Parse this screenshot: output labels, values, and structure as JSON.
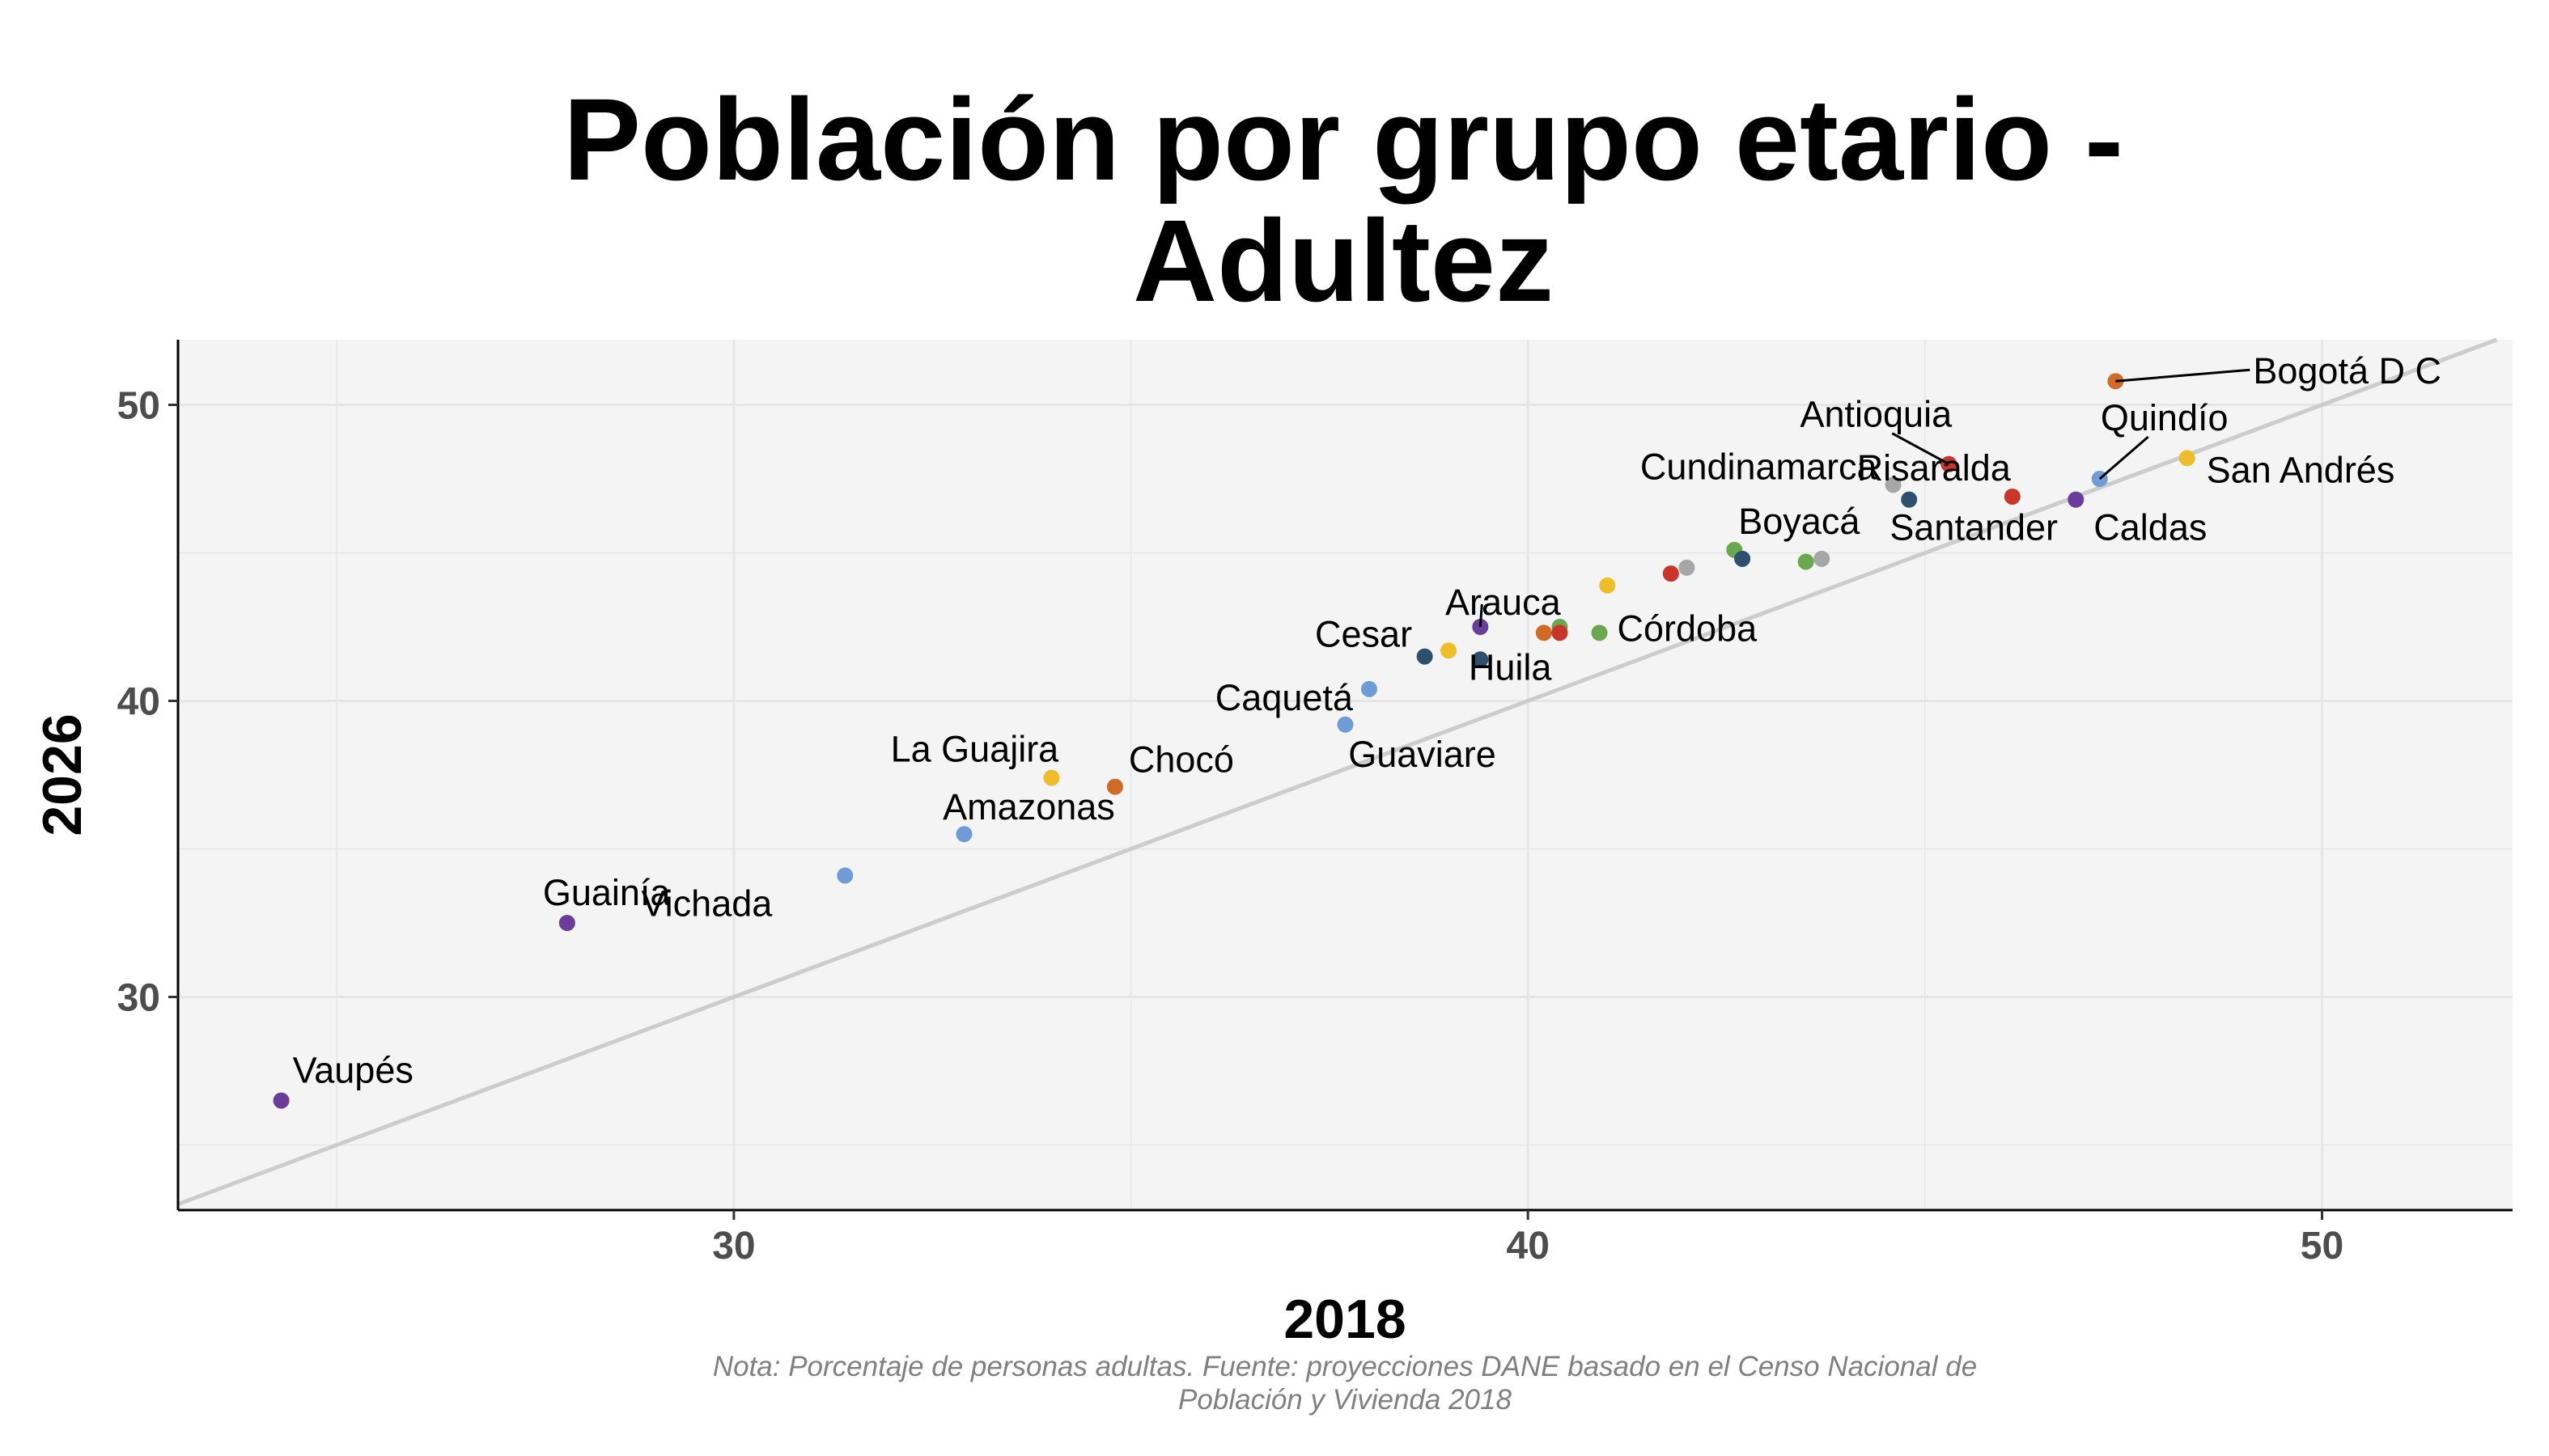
{
  "chart_data": {
    "type": "scatter",
    "title": [
      "Población por grupo etario -",
      "Adultez"
    ],
    "xlabel": "2018",
    "ylabel": "2026",
    "caption": [
      "Nota: Porcentaje de personas adultas. Fuente: proyecciones DANE basado en el Censo Nacional de",
      "Población y Vivienda 2018"
    ],
    "xlim": [
      23.0,
      52.4
    ],
    "ylim": [
      22.8,
      52.2
    ],
    "xticks": [
      30,
      40,
      50
    ],
    "yticks": [
      30,
      40,
      50
    ],
    "grid": true,
    "reference_line": "y = x",
    "colors": {
      "panel": "#f4f4f4",
      "grid": "#e6e6e6",
      "reference_line": "#cccccc",
      "purple": "#6a3d9a",
      "lightblue": "#6f9bd7",
      "yellow": "#f0bd2a",
      "orange": "#cf6b27",
      "navy": "#2f4f6f",
      "red": "#c8352a",
      "green": "#6aa84f",
      "grey": "#a6a6a6"
    },
    "points": [
      {
        "x": 24.3,
        "y": 26.5,
        "color": "#6a3d9a",
        "label": "Vaupés"
      },
      {
        "x": 27.9,
        "y": 32.5,
        "color": "#6a3d9a",
        "label": "Guainía"
      },
      {
        "x": 31.4,
        "y": 34.1,
        "color": "#6f9bd7",
        "label": "Vichada"
      },
      {
        "x": 32.9,
        "y": 35.5,
        "color": "#6f9bd7",
        "label": "Amazonas"
      },
      {
        "x": 34.0,
        "y": 37.4,
        "color": "#f0bd2a",
        "label": "La Guajira"
      },
      {
        "x": 34.8,
        "y": 37.1,
        "color": "#cf6b27",
        "label": "Chocó"
      },
      {
        "x": 37.7,
        "y": 39.2,
        "color": "#6f9bd7",
        "label": "Guaviare"
      },
      {
        "x": 38.0,
        "y": 40.4,
        "color": "#6f9bd7",
        "label": "Caquetá"
      },
      {
        "x": 38.7,
        "y": 41.5,
        "color": "#2f4f6f",
        "label": ""
      },
      {
        "x": 39.0,
        "y": 41.7,
        "color": "#f0bd2a",
        "label": "Cesar"
      },
      {
        "x": 39.4,
        "y": 42.5,
        "color": "#6a3d9a",
        "label": "Arauca"
      },
      {
        "x": 39.4,
        "y": 41.4,
        "color": "#2f4f6f",
        "label": ""
      },
      {
        "x": 40.2,
        "y": 42.3,
        "color": "#cf6b27",
        "label": ""
      },
      {
        "x": 40.4,
        "y": 42.5,
        "color": "#6aa84f",
        "label": ""
      },
      {
        "x": 40.4,
        "y": 42.3,
        "color": "#c8352a",
        "label": "Huila"
      },
      {
        "x": 40.9,
        "y": 42.3,
        "color": "#6aa84f",
        "label": "Córdoba"
      },
      {
        "x": 41.0,
        "y": 43.9,
        "color": "#f0bd2a",
        "label": ""
      },
      {
        "x": 41.8,
        "y": 44.3,
        "color": "#c8352a",
        "label": ""
      },
      {
        "x": 42.0,
        "y": 44.5,
        "color": "#a6a6a6",
        "label": ""
      },
      {
        "x": 42.6,
        "y": 45.1,
        "color": "#6aa84f",
        "label": "Boyacá"
      },
      {
        "x": 42.7,
        "y": 44.8,
        "color": "#2f4f6f",
        "label": ""
      },
      {
        "x": 43.5,
        "y": 44.7,
        "color": "#6aa84f",
        "label": ""
      },
      {
        "x": 43.7,
        "y": 44.8,
        "color": "#a6a6a6",
        "label": ""
      },
      {
        "x": 44.6,
        "y": 47.3,
        "color": "#a6a6a6",
        "label": "Cundinamarca"
      },
      {
        "x": 44.8,
        "y": 46.8,
        "color": "#2f4f6f",
        "label": "Santander"
      },
      {
        "x": 45.3,
        "y": 48.0,
        "color": "#c8352a",
        "label": "Antioquia"
      },
      {
        "x": 46.1,
        "y": 46.9,
        "color": "#c8352a",
        "label": "Risaralda"
      },
      {
        "x": 46.9,
        "y": 46.8,
        "color": "#6a3d9a",
        "label": "Caldas"
      },
      {
        "x": 47.2,
        "y": 47.5,
        "color": "#6f9bd7",
        "label": "Quindío"
      },
      {
        "x": 47.4,
        "y": 50.8,
        "color": "#cf6b27",
        "label": "Bogotá D C"
      },
      {
        "x": 48.3,
        "y": 48.2,
        "color": "#f0bd2a",
        "label": "San Andrés"
      }
    ]
  }
}
